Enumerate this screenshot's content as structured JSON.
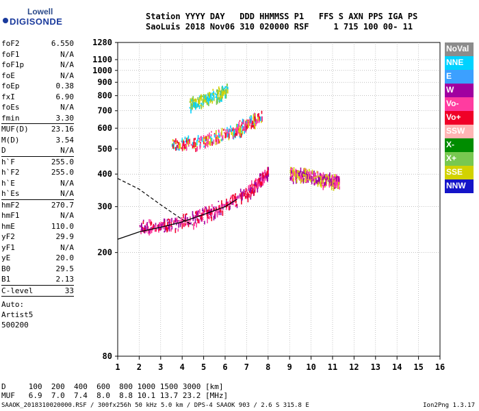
{
  "logo": {
    "line1": "Lowell",
    "line2": "DIGISONDE"
  },
  "header": {
    "line1": "Station YYYY DAY   DDD HHMMSS P1   FFS S AXN PPS IGA PS",
    "line2": "SaoLuis 2018 Nov06 310 020000 RSF     1 715 100 00- 11"
  },
  "params": {
    "group1": [
      {
        "k": "foF2",
        "v": "6.550"
      },
      {
        "k": "foF1",
        "v": "N/A"
      },
      {
        "k": "foF1p",
        "v": "N/A"
      },
      {
        "k": "foE",
        "v": "N/A"
      },
      {
        "k": "foEp",
        "v": "0.38"
      },
      {
        "k": "fxI",
        "v": "6.90"
      },
      {
        "k": "foEs",
        "v": "N/A"
      },
      {
        "k": "fmin",
        "v": "3.30"
      }
    ],
    "group2": [
      {
        "k": "MUF(D)",
        "v": "23.16"
      },
      {
        "k": "M(D)",
        "v": "3.54"
      },
      {
        "k": "D",
        "v": "N/A"
      }
    ],
    "group3": [
      {
        "k": "h`F",
        "v": "255.0"
      },
      {
        "k": "h`F2",
        "v": "255.0"
      },
      {
        "k": "h`E",
        "v": "N/A"
      },
      {
        "k": "h`Es",
        "v": "N/A"
      }
    ],
    "group4": [
      {
        "k": "hmF2",
        "v": "270.7"
      },
      {
        "k": "hmF1",
        "v": "N/A"
      },
      {
        "k": "hmE",
        "v": "110.0"
      },
      {
        "k": "yF2",
        "v": "29.9"
      },
      {
        "k": "yF1",
        "v": "N/A"
      },
      {
        "k": "yE",
        "v": "20.0"
      },
      {
        "k": "B0",
        "v": "29.5"
      },
      {
        "k": "B1",
        "v": "2.13"
      }
    ],
    "group5": [
      {
        "k": "C-level",
        "v": "33"
      }
    ],
    "auto": [
      "Auto:",
      "Artist5",
      "500200"
    ]
  },
  "legend": [
    {
      "label": "NoVal",
      "color": "#8c8c8c"
    },
    {
      "label": "NNE",
      "color": "#00d2ff"
    },
    {
      "label": "E",
      "color": "#3ca0ff"
    },
    {
      "label": "W",
      "color": "#a000a0"
    },
    {
      "label": "Vo-",
      "color": "#ff3ca0"
    },
    {
      "label": "Vo+",
      "color": "#f00028"
    },
    {
      "label": "SSW",
      "color": "#ffb4b4"
    },
    {
      "label": "X-",
      "color": "#008c00"
    },
    {
      "label": "X+",
      "color": "#78c850"
    },
    {
      "label": "SSE",
      "color": "#d2d200"
    },
    {
      "label": "NNW",
      "color": "#1414c8"
    }
  ],
  "muf_table": {
    "d_line": "D     100  200  400  600  800 1000 1500 3000 [km]",
    "muf_line": "MUF   6.9  7.0  7.4  8.0  8.8 10.1 13.7 23.2 [MHz]"
  },
  "footer": "SAAOK_2018310020000.RSF / 300fx256h 50 kHz 5.0 km / DPS-4 SAAOK 903 / 2.6 S 315.8 E",
  "version": "Ion2Png 1.3.17",
  "chart_data": {
    "type": "scatter",
    "title": "",
    "xlabel": "",
    "ylabel": "",
    "xlim": [
      1,
      16
    ],
    "ylim": [
      80,
      1280
    ],
    "x_ticks": [
      1,
      2,
      3,
      4,
      5,
      6,
      7,
      8,
      9,
      10,
      11,
      12,
      13,
      14,
      15,
      16
    ],
    "y_ticks": [
      80,
      200,
      300,
      400,
      500,
      600,
      700,
      800,
      900,
      1000,
      1100,
      1280
    ],
    "y_scale": "log",
    "grid": true,
    "legend_position": "right",
    "traces": {
      "solid_profile": {
        "x": [
          1.0,
          2.0,
          3.0,
          4.0,
          5.0,
          6.0,
          6.55
        ],
        "y": [
          225,
          240,
          250,
          262,
          280,
          300,
          320
        ]
      },
      "dashed_profile": {
        "x": [
          1.0,
          2.0,
          3.0,
          4.0,
          4.5
        ],
        "y": [
          385,
          350,
          305,
          268,
          255
        ]
      }
    },
    "echo_bands": [
      {
        "name": "F trace (o/x)",
        "x": [
          2.0,
          3.0,
          4.0,
          5.0,
          6.0,
          7.0,
          7.6,
          8.0
        ],
        "y": [
          245,
          250,
          258,
          275,
          300,
          335,
          370,
          400
        ],
        "colors": [
          "#f00028",
          "#ff3ca0",
          "#a000a0"
        ]
      },
      {
        "name": "2F trace",
        "x": [
          3.5,
          4.5,
          5.5,
          6.5,
          7.0,
          7.7
        ],
        "y": [
          510,
          520,
          545,
          580,
          610,
          660
        ],
        "colors": [
          "#ff3ca0",
          "#f00028",
          "#d2d200",
          "#00d2ff"
        ]
      },
      {
        "name": "3F trace",
        "x": [
          4.3,
          5.0,
          5.7,
          6.1
        ],
        "y": [
          735,
          765,
          800,
          825
        ],
        "colors": [
          "#d2d200",
          "#78c850",
          "#00d2ff"
        ]
      },
      {
        "name": "oblique upper",
        "x": [
          9.0,
          9.5,
          10.0,
          10.5,
          11.0,
          11.3
        ],
        "y": [
          395,
          390,
          385,
          378,
          372,
          370
        ],
        "colors": [
          "#d2d200",
          "#a000a0",
          "#ff3ca0"
        ]
      }
    ]
  }
}
